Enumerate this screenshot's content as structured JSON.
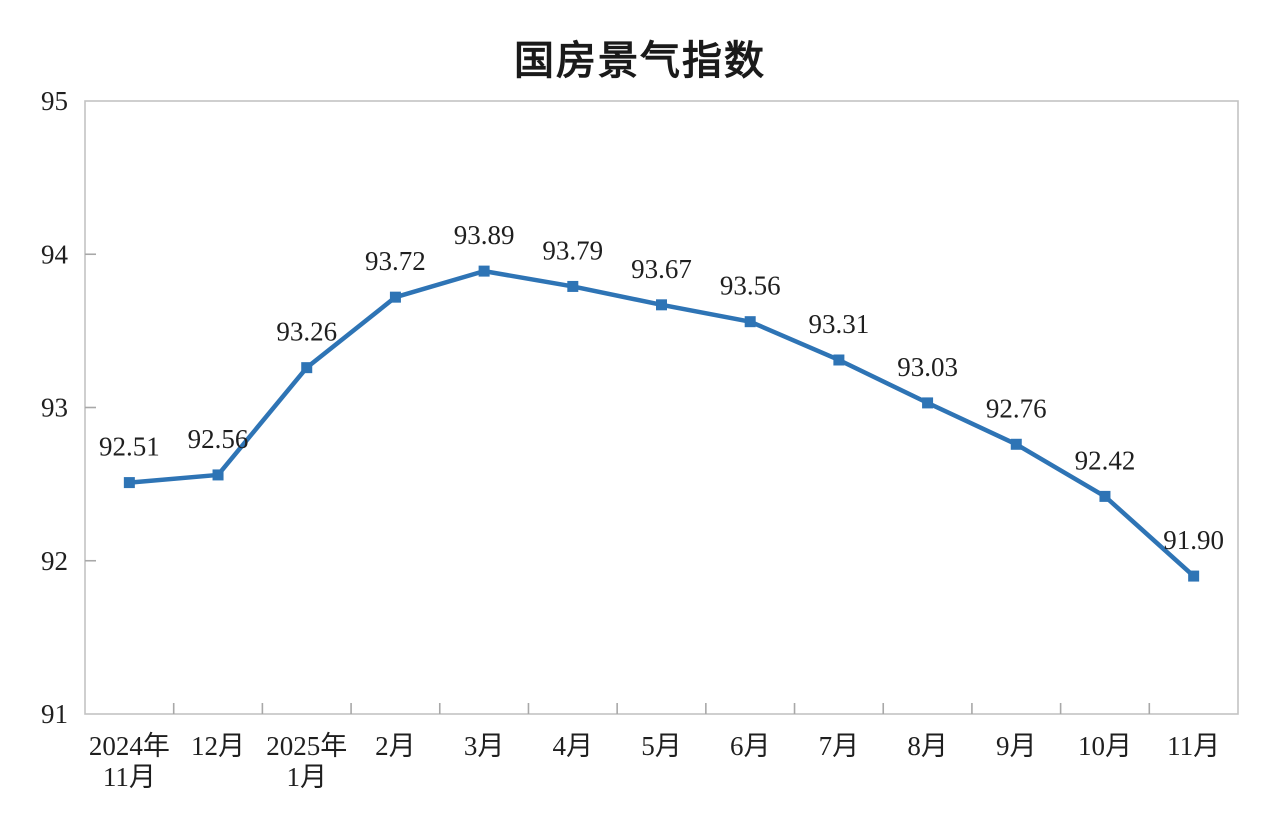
{
  "chart_data": {
    "type": "line",
    "title": "国房景气指数",
    "categories": [
      [
        "2024年",
        "11月"
      ],
      [
        "12月"
      ],
      [
        "2025年",
        "1月"
      ],
      [
        "2月"
      ],
      [
        "3月"
      ],
      [
        "4月"
      ],
      [
        "5月"
      ],
      [
        "6月"
      ],
      [
        "7月"
      ],
      [
        "8月"
      ],
      [
        "9月"
      ],
      [
        "10月"
      ],
      [
        "11月"
      ]
    ],
    "values": [
      92.51,
      92.56,
      93.26,
      93.72,
      93.89,
      93.79,
      93.67,
      93.56,
      93.31,
      93.03,
      92.76,
      92.42,
      91.9
    ],
    "data_labels": [
      "92.51",
      "92.56",
      "93.26",
      "93.72",
      "93.89",
      "93.79",
      "93.67",
      "93.56",
      "93.31",
      "93.03",
      "92.76",
      "92.42",
      "91.90"
    ],
    "ylim": [
      91,
      95
    ],
    "yticks": [
      91,
      92,
      93,
      94,
      95
    ],
    "xlabel": "",
    "ylabel": "",
    "grid": false,
    "legend": "none",
    "line_color": "#2E74B5",
    "marker": "square",
    "axis_color": "#C3C3C3",
    "tick_color": "#A8A8A8",
    "text_color": "#1F1F1F"
  }
}
